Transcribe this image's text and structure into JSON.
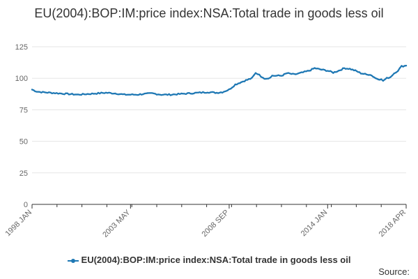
{
  "chart_data": {
    "type": "line",
    "title": "EU(2004):BOP:IM:price index:NSA:Total trade in goods less oil",
    "xlabel": "",
    "ylabel": "",
    "ylim": [
      0,
      125
    ],
    "yticks": [
      0,
      25,
      50,
      75,
      100,
      125
    ],
    "xticks": [
      {
        "label": "1998 JAN",
        "t": 1998.0
      },
      {
        "label": "2003 MAY",
        "t": 2003.33
      },
      {
        "label": "2008 SEP",
        "t": 2008.67
      },
      {
        "label": "2014 JAN",
        "t": 2014.0
      },
      {
        "label": "2018 APR",
        "t": 2018.25
      }
    ],
    "xlim": [
      1998.0,
      2018.25
    ],
    "grid": true,
    "legend_position": "bottom",
    "series": [
      {
        "name": "EU(2004):BOP:IM:price index:NSA:Total trade in goods less oil",
        "color": "#1f78b4",
        "points": [
          [
            1998.0,
            91
          ],
          [
            1998.25,
            89.5
          ],
          [
            1998.5,
            89
          ],
          [
            1999.0,
            88.5
          ],
          [
            1999.5,
            88
          ],
          [
            2000.0,
            87.5
          ],
          [
            2000.5,
            87
          ],
          [
            2001.0,
            87.5
          ],
          [
            2001.5,
            88
          ],
          [
            2002.0,
            88.5
          ],
          [
            2002.5,
            88
          ],
          [
            2003.0,
            87
          ],
          [
            2003.33,
            87
          ],
          [
            2003.7,
            87
          ],
          [
            2004.0,
            87.5
          ],
          [
            2004.5,
            88
          ],
          [
            2005.0,
            87
          ],
          [
            2005.5,
            87
          ],
          [
            2006.0,
            87.5
          ],
          [
            2006.5,
            88
          ],
          [
            2007.0,
            88.5
          ],
          [
            2007.5,
            89
          ],
          [
            2008.0,
            88.5
          ],
          [
            2008.3,
            89
          ],
          [
            2008.67,
            91
          ],
          [
            2009.0,
            95
          ],
          [
            2009.5,
            98
          ],
          [
            2009.9,
            100
          ],
          [
            2010.1,
            104
          ],
          [
            2010.3,
            103
          ],
          [
            2010.5,
            100
          ],
          [
            2010.8,
            100
          ],
          [
            2011.0,
            102
          ],
          [
            2011.5,
            102
          ],
          [
            2011.8,
            104
          ],
          [
            2012.2,
            103
          ],
          [
            2012.5,
            104
          ],
          [
            2013.0,
            106
          ],
          [
            2013.3,
            108
          ],
          [
            2013.6,
            107
          ],
          [
            2014.0,
            106
          ],
          [
            2014.3,
            104.5
          ],
          [
            2014.6,
            106
          ],
          [
            2014.9,
            108
          ],
          [
            2015.2,
            107.5
          ],
          [
            2015.5,
            106
          ],
          [
            2015.8,
            104
          ],
          [
            2016.1,
            103
          ],
          [
            2016.3,
            103
          ],
          [
            2016.6,
            100
          ],
          [
            2016.9,
            99
          ],
          [
            2017.0,
            98
          ],
          [
            2017.2,
            100
          ],
          [
            2017.4,
            101
          ],
          [
            2017.6,
            104
          ],
          [
            2017.8,
            106
          ],
          [
            2018.0,
            109.5
          ],
          [
            2018.25,
            110
          ]
        ]
      }
    ]
  },
  "legend": {
    "label": "EU(2004):BOP:IM:price index:NSA:Total trade in goods less oil"
  },
  "footer": {
    "source_label": "Source:"
  }
}
